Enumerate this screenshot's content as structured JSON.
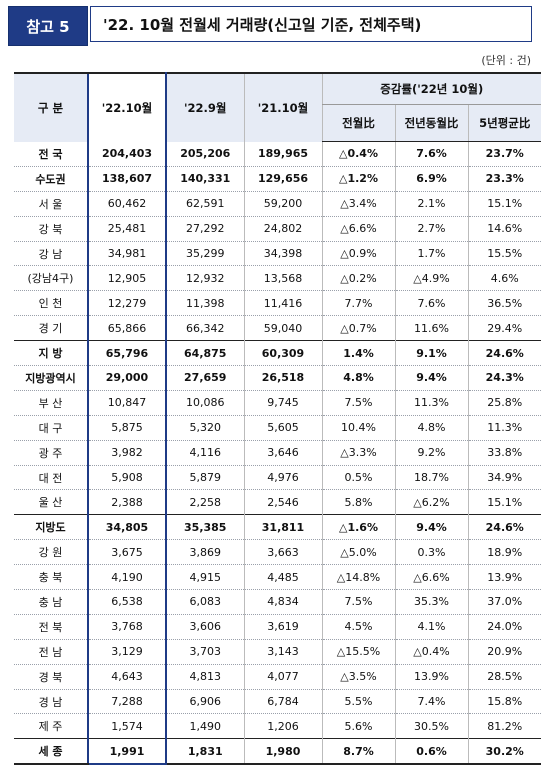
{
  "header": {
    "badge": "참고 5",
    "title": "'22. 10월 전월세 거래량(신고일 기준, 전체주택)"
  },
  "unit": "(단위 : 건)",
  "table": {
    "col_region": "구 분",
    "col_cur": "'22.10월",
    "col_prev_month": "'22.9월",
    "col_prev_year": "'21.10월",
    "col_rate_group": "증감률('22년 10월)",
    "col_mom": "전월比",
    "col_yoy": "전년동월比",
    "col_5yr": "5년평균比",
    "rows": [
      {
        "label": "전 국",
        "cur": "204,403",
        "pm": "205,206",
        "py": "189,965",
        "mom": "△0.4%",
        "yoy": "7.6%",
        "avg": "23.7%",
        "bold": true
      },
      {
        "label": "수도권",
        "cur": "138,607",
        "pm": "140,331",
        "py": "129,656",
        "mom": "△1.2%",
        "yoy": "6.9%",
        "avg": "23.3%",
        "bold": true
      },
      {
        "label": "서 울",
        "cur": "60,462",
        "pm": "62,591",
        "py": "59,200",
        "mom": "△3.4%",
        "yoy": "2.1%",
        "avg": "15.1%"
      },
      {
        "label": "강 북",
        "cur": "25,481",
        "pm": "27,292",
        "py": "24,802",
        "mom": "△6.6%",
        "yoy": "2.7%",
        "avg": "14.6%"
      },
      {
        "label": "강 남",
        "cur": "34,981",
        "pm": "35,299",
        "py": "34,398",
        "mom": "△0.9%",
        "yoy": "1.7%",
        "avg": "15.5%"
      },
      {
        "label": "(강남4구)",
        "cur": "12,905",
        "pm": "12,932",
        "py": "13,568",
        "mom": "△0.2%",
        "yoy": "△4.9%",
        "avg": "4.6%"
      },
      {
        "label": "인 천",
        "cur": "12,279",
        "pm": "11,398",
        "py": "11,416",
        "mom": "7.7%",
        "yoy": "7.6%",
        "avg": "36.5%"
      },
      {
        "label": "경 기",
        "cur": "65,866",
        "pm": "66,342",
        "py": "59,040",
        "mom": "△0.7%",
        "yoy": "11.6%",
        "avg": "29.4%"
      },
      {
        "label": "지 방",
        "cur": "65,796",
        "pm": "64,875",
        "py": "60,309",
        "mom": "1.4%",
        "yoy": "9.1%",
        "avg": "24.6%",
        "bold": true,
        "sep": true
      },
      {
        "label": "지방광역시",
        "cur": "29,000",
        "pm": "27,659",
        "py": "26,518",
        "mom": "4.8%",
        "yoy": "9.4%",
        "avg": "24.3%",
        "bold": true
      },
      {
        "label": "부 산",
        "cur": "10,847",
        "pm": "10,086",
        "py": "9,745",
        "mom": "7.5%",
        "yoy": "11.3%",
        "avg": "25.8%"
      },
      {
        "label": "대 구",
        "cur": "5,875",
        "pm": "5,320",
        "py": "5,605",
        "mom": "10.4%",
        "yoy": "4.8%",
        "avg": "11.3%"
      },
      {
        "label": "광 주",
        "cur": "3,982",
        "pm": "4,116",
        "py": "3,646",
        "mom": "△3.3%",
        "yoy": "9.2%",
        "avg": "33.8%"
      },
      {
        "label": "대 전",
        "cur": "5,908",
        "pm": "5,879",
        "py": "4,976",
        "mom": "0.5%",
        "yoy": "18.7%",
        "avg": "34.9%"
      },
      {
        "label": "울 산",
        "cur": "2,388",
        "pm": "2,258",
        "py": "2,546",
        "mom": "5.8%",
        "yoy": "△6.2%",
        "avg": "15.1%"
      },
      {
        "label": "지방도",
        "cur": "34,805",
        "pm": "35,385",
        "py": "31,811",
        "mom": "△1.6%",
        "yoy": "9.4%",
        "avg": "24.6%",
        "bold": true,
        "sep": true
      },
      {
        "label": "강 원",
        "cur": "3,675",
        "pm": "3,869",
        "py": "3,663",
        "mom": "△5.0%",
        "yoy": "0.3%",
        "avg": "18.9%"
      },
      {
        "label": "충 북",
        "cur": "4,190",
        "pm": "4,915",
        "py": "4,485",
        "mom": "△14.8%",
        "yoy": "△6.6%",
        "avg": "13.9%"
      },
      {
        "label": "충 남",
        "cur": "6,538",
        "pm": "6,083",
        "py": "4,834",
        "mom": "7.5%",
        "yoy": "35.3%",
        "avg": "37.0%"
      },
      {
        "label": "전 북",
        "cur": "3,768",
        "pm": "3,606",
        "py": "3,619",
        "mom": "4.5%",
        "yoy": "4.1%",
        "avg": "24.0%"
      },
      {
        "label": "전 남",
        "cur": "3,129",
        "pm": "3,703",
        "py": "3,143",
        "mom": "△15.5%",
        "yoy": "△0.4%",
        "avg": "20.9%"
      },
      {
        "label": "경 북",
        "cur": "4,643",
        "pm": "4,813",
        "py": "4,077",
        "mom": "△3.5%",
        "yoy": "13.9%",
        "avg": "28.5%"
      },
      {
        "label": "경 남",
        "cur": "7,288",
        "pm": "6,906",
        "py": "6,784",
        "mom": "5.5%",
        "yoy": "7.4%",
        "avg": "15.8%"
      },
      {
        "label": "제 주",
        "cur": "1,574",
        "pm": "1,490",
        "py": "1,206",
        "mom": "5.6%",
        "yoy": "30.5%",
        "avg": "81.2%"
      },
      {
        "label": "세 종",
        "cur": "1,991",
        "pm": "1,831",
        "py": "1,980",
        "mom": "8.7%",
        "yoy": "0.6%",
        "avg": "30.2%",
        "bold": true,
        "sep": true
      }
    ]
  }
}
